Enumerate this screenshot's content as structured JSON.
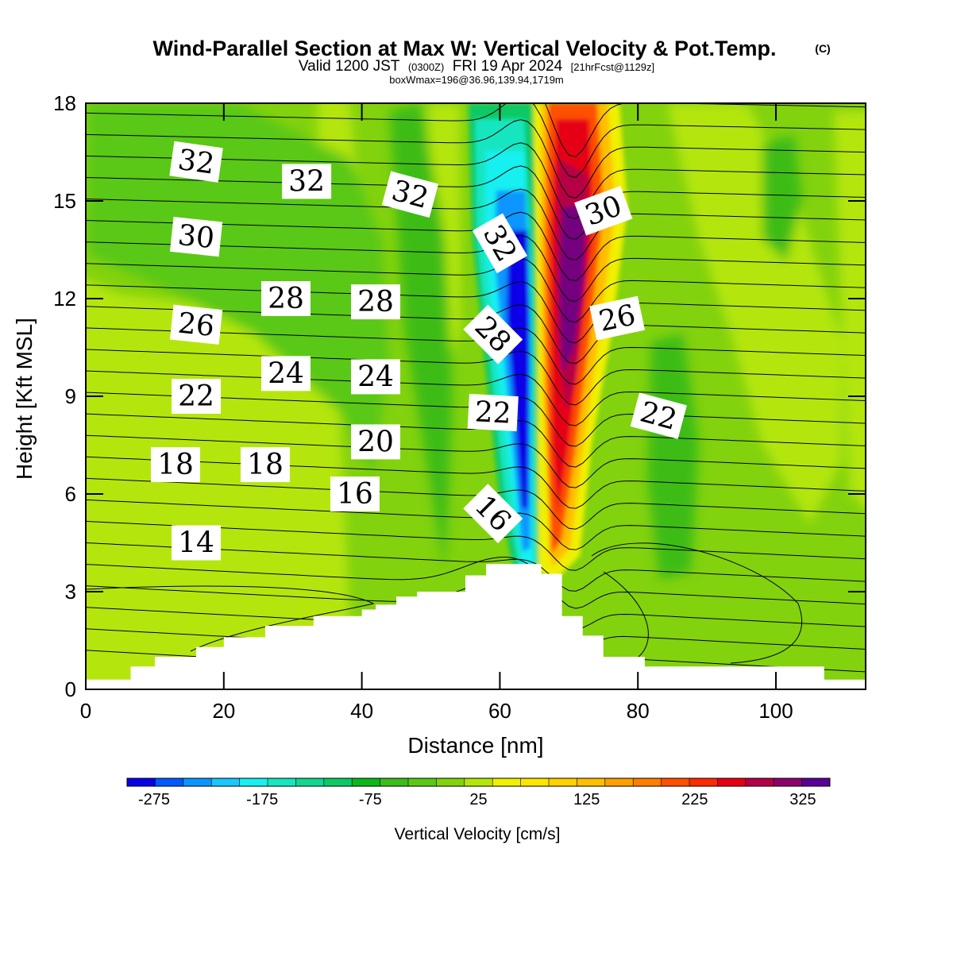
{
  "header": {
    "title": "Wind-Parallel Section at Max W: Vertical Velocity & Pot.Temp.",
    "copyright": "(C)",
    "valid_prefix": "Valid 1200 JST",
    "valid_utc": "(0300Z)",
    "valid_date": "FRI 19 Apr 2024",
    "forecast": "[21hrFcst@1129z]",
    "box_info": "boxWmax=196@36.96,139.94,1719m"
  },
  "chart_data": {
    "type": "heatmap",
    "title": "Wind-Parallel Section at Max W: Vertical Velocity & Pot.Temp.",
    "xlabel": "Distance [nm]",
    "ylabel": "Height [Kft MSL]",
    "xlim": [
      0,
      113
    ],
    "ylim": [
      0,
      18
    ],
    "x_ticks": [
      "0",
      "20",
      "40",
      "60",
      "80",
      "100"
    ],
    "y_ticks": [
      "0",
      "3",
      "6",
      "9",
      "12",
      "15",
      "18"
    ],
    "colorbar": {
      "title": "Vertical Velocity [cm/s]",
      "tick_labels": [
        "-275",
        "-175",
        "-75",
        "25",
        "125",
        "225",
        "325"
      ],
      "tick_values": [
        -275,
        -175,
        -75,
        25,
        125,
        225,
        325
      ],
      "min": -300,
      "max": 350,
      "step": 25,
      "colors": [
        "#0a00e8",
        "#005aff",
        "#0a96ff",
        "#18c8ff",
        "#19f0f0",
        "#14e6c0",
        "#10d690",
        "#0ec864",
        "#0bb81c",
        "#3cbc18",
        "#5ac814",
        "#82d20e",
        "#b4e60a",
        "#f0f000",
        "#ffe600",
        "#ffd200",
        "#ffbe00",
        "#ffa000",
        "#ff7d00",
        "#ff5000",
        "#ff2a00",
        "#e60014",
        "#b40046",
        "#8c006e",
        "#5a0096"
      ]
    },
    "terrain_profile": {
      "distance_nm": [
        0,
        6.5,
        10,
        16,
        20,
        26,
        33,
        40,
        42,
        45,
        48,
        55,
        58,
        66,
        69,
        72,
        75,
        81,
        107,
        113
      ],
      "height_kft": [
        0.3,
        0.7,
        1.0,
        1.3,
        1.6,
        1.95,
        2.25,
        2.45,
        2.6,
        2.85,
        3.0,
        3.5,
        3.85,
        3.55,
        2.25,
        1.65,
        1.0,
        0.7,
        0.3,
        0.3
      ]
    },
    "potential_temperature_labels": [
      {
        "text": "32",
        "distance_nm": 16,
        "height_kft": 16.2
      },
      {
        "text": "32",
        "distance_nm": 32,
        "height_kft": 15.6
      },
      {
        "text": "32",
        "distance_nm": 47,
        "height_kft": 15.2
      },
      {
        "text": "30",
        "distance_nm": 16,
        "height_kft": 13.9
      },
      {
        "text": "30",
        "distance_nm": 75,
        "height_kft": 14.7
      },
      {
        "text": "32",
        "distance_nm": 60,
        "height_kft": 13.7
      },
      {
        "text": "28",
        "distance_nm": 29,
        "height_kft": 12.0
      },
      {
        "text": "28",
        "distance_nm": 42,
        "height_kft": 11.9
      },
      {
        "text": "28",
        "distance_nm": 59,
        "height_kft": 10.9
      },
      {
        "text": "26",
        "distance_nm": 16,
        "height_kft": 11.2
      },
      {
        "text": "26",
        "distance_nm": 77,
        "height_kft": 11.4
      },
      {
        "text": "24",
        "distance_nm": 29,
        "height_kft": 9.7
      },
      {
        "text": "24",
        "distance_nm": 42,
        "height_kft": 9.6
      },
      {
        "text": "22",
        "distance_nm": 16,
        "height_kft": 9.0
      },
      {
        "text": "22",
        "distance_nm": 59,
        "height_kft": 8.5
      },
      {
        "text": "22",
        "distance_nm": 83,
        "height_kft": 8.4
      },
      {
        "text": "20",
        "distance_nm": 42,
        "height_kft": 7.6
      },
      {
        "text": "18",
        "distance_nm": 13,
        "height_kft": 6.9
      },
      {
        "text": "18",
        "distance_nm": 26,
        "height_kft": 6.9
      },
      {
        "text": "16",
        "distance_nm": 39,
        "height_kft": 6.0
      },
      {
        "text": "16",
        "distance_nm": 59,
        "height_kft": 5.4
      },
      {
        "text": "14",
        "distance_nm": 16,
        "height_kft": 4.5
      }
    ],
    "vertical_velocity_features": [
      {
        "kind": "downdraft-core",
        "distance_nm": 63.5,
        "height_range_kft": [
          3.9,
          18
        ],
        "min_cm_s": -280
      },
      {
        "kind": "updraft-core",
        "distance_nm": 70.5,
        "height_range_kft": [
          3.9,
          18
        ],
        "max_cm_s": 340
      }
    ],
    "grid": false,
    "legend": "colorbar-bottom"
  }
}
